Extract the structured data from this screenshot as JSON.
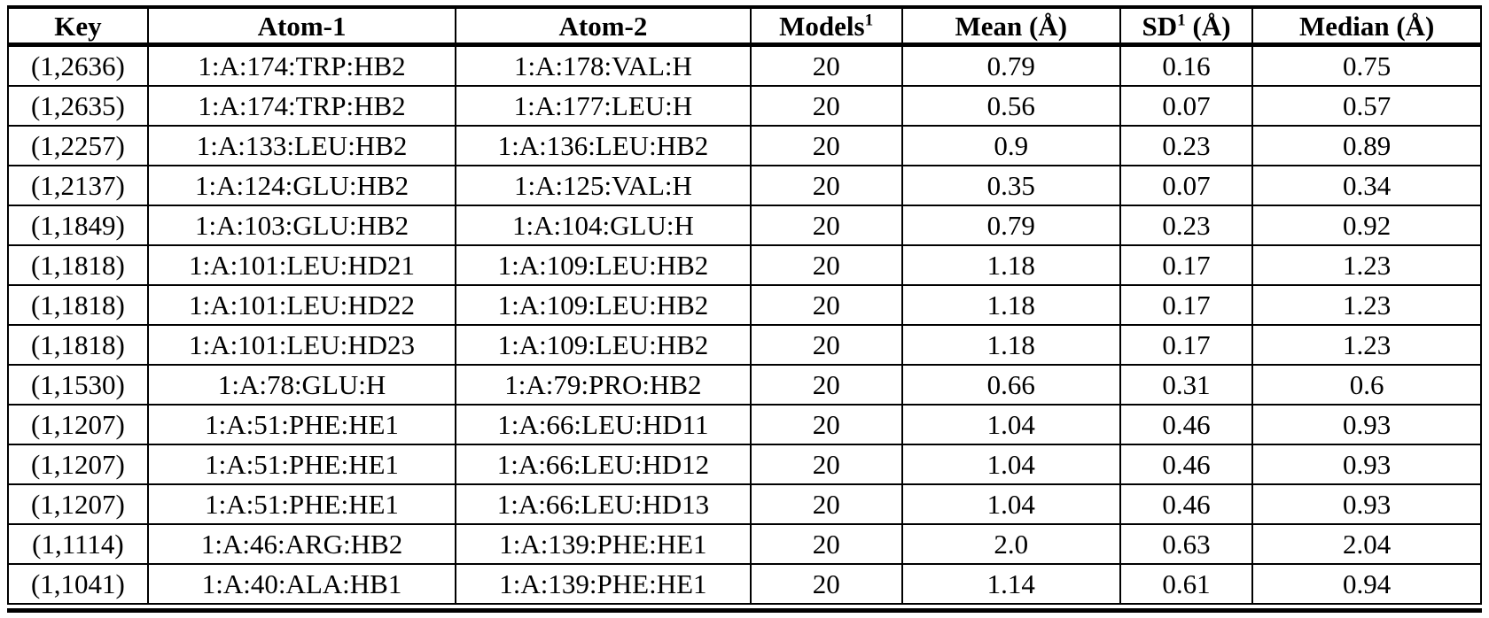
{
  "table": {
    "headers": [
      {
        "pre": "Key",
        "sup": "",
        "post": ""
      },
      {
        "pre": "Atom-1",
        "sup": "",
        "post": ""
      },
      {
        "pre": "Atom-2",
        "sup": "",
        "post": ""
      },
      {
        "pre": "Models",
        "sup": "1",
        "post": ""
      },
      {
        "pre": "Mean (Å)",
        "sup": "",
        "post": ""
      },
      {
        "pre": "SD",
        "sup": "1",
        "post": " (Å)"
      },
      {
        "pre": "Median (Å)",
        "sup": "",
        "post": ""
      }
    ],
    "rows": [
      [
        "(1,2636)",
        "1:A:174:TRP:HB2",
        "1:A:178:VAL:H",
        "20",
        "0.79",
        "0.16",
        "0.75"
      ],
      [
        "(1,2635)",
        "1:A:174:TRP:HB2",
        "1:A:177:LEU:H",
        "20",
        "0.56",
        "0.07",
        "0.57"
      ],
      [
        "(1,2257)",
        "1:A:133:LEU:HB2",
        "1:A:136:LEU:HB2",
        "20",
        "0.9",
        "0.23",
        "0.89"
      ],
      [
        "(1,2137)",
        "1:A:124:GLU:HB2",
        "1:A:125:VAL:H",
        "20",
        "0.35",
        "0.07",
        "0.34"
      ],
      [
        "(1,1849)",
        "1:A:103:GLU:HB2",
        "1:A:104:GLU:H",
        "20",
        "0.79",
        "0.23",
        "0.92"
      ],
      [
        "(1,1818)",
        "1:A:101:LEU:HD21",
        "1:A:109:LEU:HB2",
        "20",
        "1.18",
        "0.17",
        "1.23"
      ],
      [
        "(1,1818)",
        "1:A:101:LEU:HD22",
        "1:A:109:LEU:HB2",
        "20",
        "1.18",
        "0.17",
        "1.23"
      ],
      [
        "(1,1818)",
        "1:A:101:LEU:HD23",
        "1:A:109:LEU:HB2",
        "20",
        "1.18",
        "0.17",
        "1.23"
      ],
      [
        "(1,1530)",
        "1:A:78:GLU:H",
        "1:A:79:PRO:HB2",
        "20",
        "0.66",
        "0.31",
        "0.6"
      ],
      [
        "(1,1207)",
        "1:A:51:PHE:HE1",
        "1:A:66:LEU:HD11",
        "20",
        "1.04",
        "0.46",
        "0.93"
      ],
      [
        "(1,1207)",
        "1:A:51:PHE:HE1",
        "1:A:66:LEU:HD12",
        "20",
        "1.04",
        "0.46",
        "0.93"
      ],
      [
        "(1,1207)",
        "1:A:51:PHE:HE1",
        "1:A:66:LEU:HD13",
        "20",
        "1.04",
        "0.46",
        "0.93"
      ],
      [
        "(1,1114)",
        "1:A:46:ARG:HB2",
        "1:A:139:PHE:HE1",
        "20",
        "2.0",
        "0.63",
        "2.04"
      ],
      [
        "(1,1041)",
        "1:A:40:ALA:HB1",
        "1:A:139:PHE:HE1",
        "20",
        "1.14",
        "0.61",
        "0.94"
      ]
    ]
  }
}
